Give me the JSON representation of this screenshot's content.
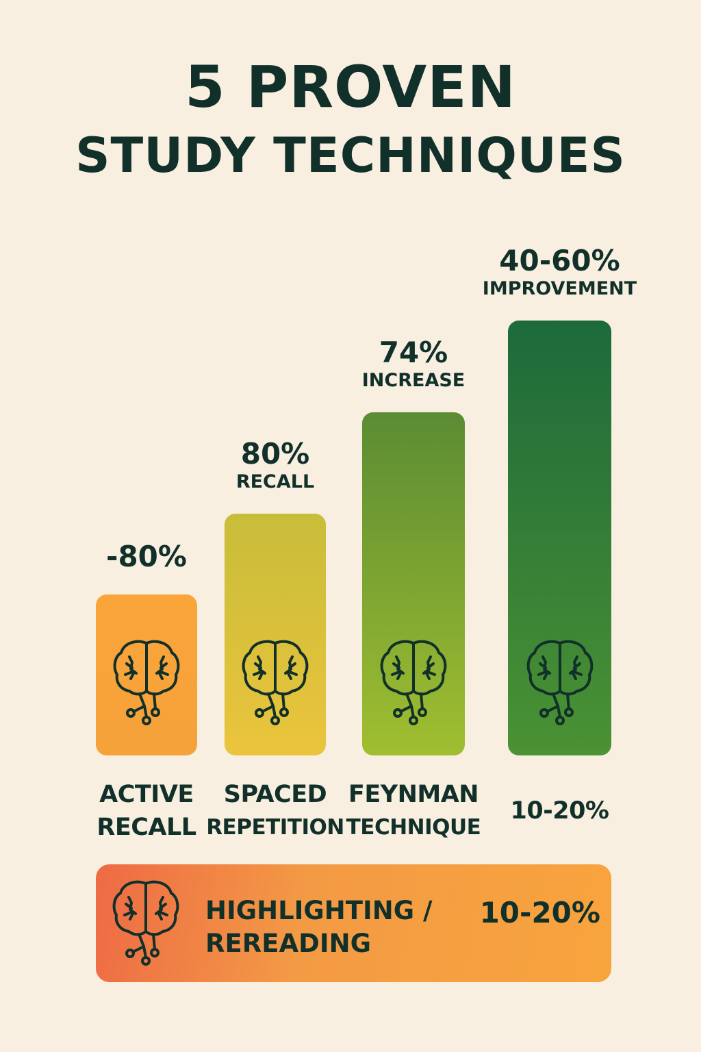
{
  "title": {
    "line1": "5 PROVEN",
    "line2": "STUDY TECHNIQUES"
  },
  "chart_data": {
    "type": "bar",
    "title": "5 PROVEN STUDY TECHNIQUES",
    "categories": [
      "ACTIVE RECALL",
      "SPACED REPETITION",
      "FEYNMAN TECHNIQUE",
      "10-20%"
    ],
    "bars": [
      {
        "cat1": "ACTIVE",
        "cat2": "RECALL",
        "value": "-80%",
        "sub": "",
        "rank": 1,
        "top": "#f9a53a",
        "bottom": "#f6a23a"
      },
      {
        "cat1": "SPACED",
        "cat2": "REPETITION",
        "value": "80%",
        "sub": "RECALL",
        "rank": 2,
        "top": "#c8bd3a",
        "bottom": "#ebc43c"
      },
      {
        "cat1": "FEYNMAN",
        "cat2": "TECHNIQUE",
        "value": "74%",
        "sub": "INCREASE",
        "rank": 3,
        "top": "#5b8c34",
        "bottom": "#a0be30"
      },
      {
        "cat1": "10-20%",
        "cat2": "",
        "value": "40-60%",
        "sub": "IMPROVEMENT",
        "rank": 4,
        "top": "#1d6a3b",
        "bottom": "#4b9233"
      }
    ],
    "bottom": {
      "label1": "HIGHLIGHTING /",
      "label2": "REREADING",
      "value": "10-20%"
    },
    "icon": "brain-circuit-icon"
  }
}
